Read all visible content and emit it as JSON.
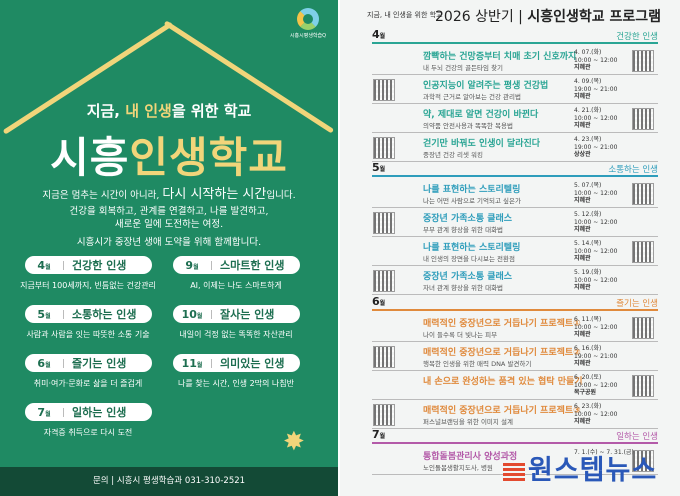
{
  "poster": {
    "logo_text": "시흥시평생학습Q",
    "subtitle_pre": "지금, ",
    "subtitle_hl": "내 인생",
    "subtitle_post": "을 위한 학교",
    "title_white": "시흥",
    "title_yellow": "인생학교",
    "lines": [
      {
        "pre": "지금은 멈추는 시간이 아니라, ",
        "big": "다시 시작하는 시간",
        "post": "입니다."
      },
      {
        "pre": "건강을 회복하고, 관계를 연결하고, 나를 발견하고,",
        "big": "",
        "post": ""
      },
      {
        "pre": "새로운 일에 도전하는 여정.",
        "big": "",
        "post": ""
      },
      {
        "pre": "시흥시가 중장년 생애 도약을 위해 함께합니다.",
        "big": "",
        "post": ""
      }
    ],
    "themes": [
      {
        "month": "4",
        "unit": "월",
        "title": "건강한 인생",
        "desc": "지금부터 100세까지, 빈틈없는 건강관리"
      },
      {
        "month": "9",
        "unit": "월",
        "title": "스마트한 인생",
        "desc": "AI, 이제는 나도 스마트하게"
      },
      {
        "month": "5",
        "unit": "월",
        "title": "소통하는 인생",
        "desc": "사람과 사람을 잇는 따뜻한 소통 기술"
      },
      {
        "month": "10",
        "unit": "월",
        "title": "잘사는 인생",
        "desc": "내일이 걱정 없는 똑똑한 자산관리"
      },
      {
        "month": "6",
        "unit": "월",
        "title": "즐기는 인생",
        "desc": "취미·여가·문화로 삶을 더 즐겁게"
      },
      {
        "month": "11",
        "unit": "월",
        "title": "의미있는 인생",
        "desc": "나를 찾는 시간, 인생 2막의 나침반"
      },
      {
        "month": "7",
        "unit": "월",
        "title": "일하는 인생",
        "desc": "자격증 취득으로 다시 도전"
      }
    ],
    "footer": "문의 | 시흥시 평생학습과 031-310-2521"
  },
  "program": {
    "header_small": "지금, 내 인생을 위한 학교",
    "title_pre": "2026 상반기 | ",
    "title_bold": "시흥인생학교 프로그램",
    "months": [
      {
        "month": "4",
        "unit": "월",
        "theme": "건강한 인생",
        "color": "#2aa594",
        "items": [
          {
            "title": "깜빡하는 건망증부터 치매 초기 신호까지",
            "sub": "내 두뇌 건강의 골든타임 찾기",
            "date": "4. 07.(화)",
            "time": "10:00 ~ 12:00",
            "place": "지혜관"
          },
          {
            "title": "인공지능이 알려주는 평생 건강법",
            "sub": "과학적 근거로 알아보는 건강 관리법",
            "date": "4. 09.(목)",
            "time": "19:00 ~ 21:00",
            "place": "지혜관"
          },
          {
            "title": "약, 제대로 알면 건강이 바뀐다",
            "sub": "의약품 안전사용과 똑똑한 복용법",
            "date": "4. 21.(화)",
            "time": "10:00 ~ 12:00",
            "place": "지혜관"
          },
          {
            "title": "걷기만 바꿔도 인생이 달라진다",
            "sub": "중장년 건강 리셋 워킹",
            "date": "4. 23.(목)",
            "time": "19:00 ~ 21:00",
            "place": "상상관"
          }
        ]
      },
      {
        "month": "5",
        "unit": "월",
        "theme": "소통하는 인생",
        "color": "#2e9dbb",
        "items": [
          {
            "title": "나를 표현하는 스토리텔링",
            "sub": "나는 어떤 사람으로 기억되고 싶은가",
            "date": "5. 07.(목)",
            "time": "10:00 ~ 12:00",
            "place": "지혜관"
          },
          {
            "title": "중장년 가족소통 클래스",
            "sub": "부부 관계 향상을 위한 대화법",
            "date": "5. 12.(화)",
            "time": "10:00 ~ 12:00",
            "place": "지혜관"
          },
          {
            "title": "나를 표현하는 스토리텔링",
            "sub": "내 인생의 장면을 다시보는 전환점",
            "date": "5. 14.(목)",
            "time": "10:00 ~ 12:00",
            "place": "지혜관"
          },
          {
            "title": "중장년 가족소통 클래스",
            "sub": "자녀 관계 향상을 위한 대화법",
            "date": "5. 19.(화)",
            "time": "10:00 ~ 12:00",
            "place": "지혜관"
          }
        ]
      },
      {
        "month": "6",
        "unit": "월",
        "theme": "즐기는 인생",
        "color": "#e08a3c",
        "items": [
          {
            "title": "매력적인 중장년으로 거듭나기 프로젝트①",
            "sub": "나이 들수록 더 빛나는 피부",
            "date": "6. 11.(목)",
            "time": "10:00 ~ 12:00",
            "place": "지혜관"
          },
          {
            "title": "매력적인 중장년으로 거듭나기 프로젝트②",
            "sub": "행복한 인생을 위한 매력 DNA 발견하기",
            "date": "6. 16.(화)",
            "time": "19:00 ~ 21:00",
            "place": "지혜관"
          },
          {
            "title": "내 손으로 완성하는 품격 있는 협탁 만들기",
            "sub": "",
            "date": "6. 20.(토)",
            "time": "10:00 ~ 12:00",
            "place": "목구공원"
          },
          {
            "title": "매력적인 중장년으로 거듭나기 프로젝트③",
            "sub": "퍼스널브랜딩을 위한 이미지 설계",
            "date": "6. 23.(화)",
            "time": "10:00 ~ 12:00",
            "place": "지혜관"
          }
        ]
      },
      {
        "month": "7",
        "unit": "월",
        "theme": "일하는 인생",
        "color": "#b35aa8",
        "items": [
          {
            "title": "통합돌봄관리사 양성과정",
            "sub": "노인돌봄생활지도사, 병원",
            "date": "7. 1.(수) ~ 7. 31.(금)",
            "time": "",
            "place": ""
          }
        ]
      }
    ]
  },
  "watermark": "원스텝뉴스"
}
